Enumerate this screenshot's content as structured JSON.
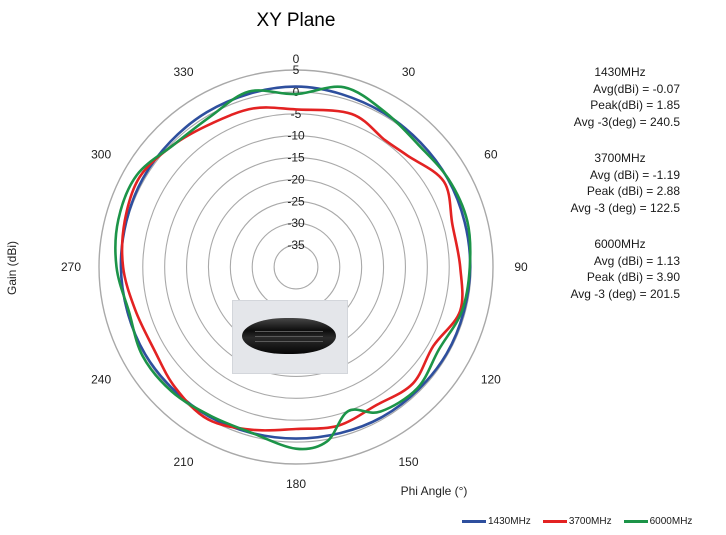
{
  "chart_data": {
    "type": "polar-line",
    "title": "XY Plane",
    "radial_axis": {
      "label": "Gain  (dBi)",
      "range": [
        -40,
        5
      ],
      "ticks": [
        5,
        0,
        -5,
        -10,
        -15,
        -20,
        -25,
        -30,
        -35
      ],
      "tick_labels": [
        "5",
        "0",
        "-5",
        "-10",
        "-15",
        "-20",
        "-25",
        "-30",
        "-35"
      ]
    },
    "angular_axis": {
      "label": "Phi Angle (°)",
      "direction": "clockwise",
      "zero_at": "top",
      "ticks": [
        0,
        30,
        60,
        90,
        120,
        150,
        180,
        210,
        240,
        270,
        300,
        330
      ],
      "tick_labels": [
        "0",
        "30",
        "60",
        "90",
        "120",
        "150",
        "180",
        "210",
        "240",
        "270",
        "300",
        "330"
      ]
    },
    "grid": true,
    "legend_position": "bottom-right",
    "series": [
      {
        "name": "1430MHz",
        "color": "#2e4f9e",
        "points": [
          [
            0,
            1.2
          ],
          [
            30,
            0.5
          ],
          [
            60,
            0.1
          ],
          [
            90,
            -0.2
          ],
          [
            120,
            -0.3
          ],
          [
            150,
            -0.5
          ],
          [
            180,
            -0.8
          ],
          [
            210,
            -0.5
          ],
          [
            240,
            -0.2
          ],
          [
            270,
            0.0
          ],
          [
            300,
            0.4
          ],
          [
            330,
            0.8
          ]
        ]
      },
      {
        "name": "3700MHz",
        "color": "#e32222",
        "points": [
          [
            0,
            -4.0
          ],
          [
            20,
            -2.8
          ],
          [
            35,
            -4.6
          ],
          [
            45,
            -4.0
          ],
          [
            60,
            -1.0
          ],
          [
            75,
            -3.0
          ],
          [
            90,
            -2.5
          ],
          [
            105,
            -1.2
          ],
          [
            120,
            -3.8
          ],
          [
            135,
            -2.3
          ],
          [
            150,
            -3.5
          ],
          [
            165,
            -2.5
          ],
          [
            180,
            -3.0
          ],
          [
            195,
            -1.5
          ],
          [
            210,
            0.2
          ],
          [
            225,
            -1.0
          ],
          [
            240,
            -2.5
          ],
          [
            255,
            -2.0
          ],
          [
            270,
            -0.5
          ],
          [
            285,
            0.5
          ],
          [
            300,
            1.2
          ],
          [
            315,
            -0.5
          ],
          [
            330,
            -2.0
          ],
          [
            345,
            -2.5
          ]
        ]
      },
      {
        "name": "6000MHz",
        "color": "#1c9448",
        "points": [
          [
            0,
            -0.5
          ],
          [
            15,
            2.5
          ],
          [
            30,
            0.8
          ],
          [
            45,
            -0.5
          ],
          [
            60,
            0.2
          ],
          [
            75,
            0.5
          ],
          [
            90,
            -0.3
          ],
          [
            105,
            -0.8
          ],
          [
            120,
            -2.3
          ],
          [
            135,
            -0.8
          ],
          [
            150,
            -1.8
          ],
          [
            160,
            -5.0
          ],
          [
            170,
            0.5
          ],
          [
            180,
            1.5
          ],
          [
            195,
            -0.8
          ],
          [
            210,
            -0.8
          ],
          [
            225,
            0.2
          ],
          [
            240,
            0.5
          ],
          [
            255,
            -0.5
          ],
          [
            270,
            1.0
          ],
          [
            285,
            2.0
          ],
          [
            300,
            2.0
          ],
          [
            315,
            -0.5
          ],
          [
            330,
            -0.5
          ],
          [
            345,
            1.5
          ]
        ]
      }
    ],
    "annotations": [
      {
        "heading": "1430MHz",
        "lines": [
          {
            "label": "Avg(dBi) =",
            "value": "-0.07"
          },
          {
            "label": "Peak(dBi) =",
            "value": "1.85"
          },
          {
            "label": "Avg -3(deg) =",
            "value": "240.5"
          }
        ]
      },
      {
        "heading": "3700MHz",
        "lines": [
          {
            "label": "Avg (dBi) =",
            "value": "-1.19"
          },
          {
            "label": "Peak (dBi) =",
            "value": "2.88"
          },
          {
            "label": "Avg -3 (deg) =",
            "value": "122.5"
          }
        ]
      },
      {
        "heading": "6000MHz",
        "lines": [
          {
            "label": "Avg (dBi) =",
            "value": "1.13"
          },
          {
            "label": "Peak (dBi) =",
            "value": "3.90"
          },
          {
            "label": "Avg -3 (deg) =",
            "value": "201.5"
          }
        ]
      }
    ],
    "inset_image": "antenna-puck-photo"
  }
}
